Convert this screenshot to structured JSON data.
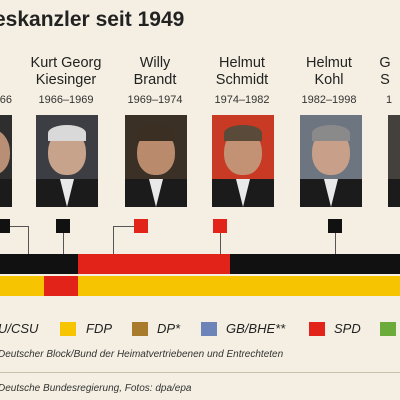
{
  "title": "eskanzler seit 1949",
  "chancellors": [
    {
      "name": [
        "",
        ""
      ],
      "years": "66"
    },
    {
      "name": [
        "Kurt Georg",
        "Kiesinger"
      ],
      "years": "1966–1969"
    },
    {
      "name": [
        "Willy",
        "Brandt"
      ],
      "years": "1969–1974"
    },
    {
      "name": [
        "Helmut",
        "Schmidt"
      ],
      "years": "1974–1982"
    },
    {
      "name": [
        "Helmut",
        "Kohl"
      ],
      "years": "1982–1998"
    },
    {
      "name": [
        "G",
        "S"
      ],
      "years": "1"
    }
  ],
  "legend": [
    {
      "label": "U/CSU",
      "color": "#111111"
    },
    {
      "label": "FDP",
      "color": "#f6c400"
    },
    {
      "label": "DP*",
      "color": "#a87c2c"
    },
    {
      "label": "GB/BHE**",
      "color": "#6d84b9"
    },
    {
      "label": "SPD",
      "color": "#e2231a"
    },
    {
      "label": "",
      "color": "#6bab3c"
    }
  ],
  "footnote": "Deutscher Block/Bund der Heimatvertriebenen und Entrechteten",
  "source": "Deutsche Bundesregierung, Fotos: dpa/epa",
  "colors": {
    "cdu": "#111111",
    "fdp": "#f6c400",
    "spd": "#e2231a",
    "background": "#f4efe2"
  }
}
